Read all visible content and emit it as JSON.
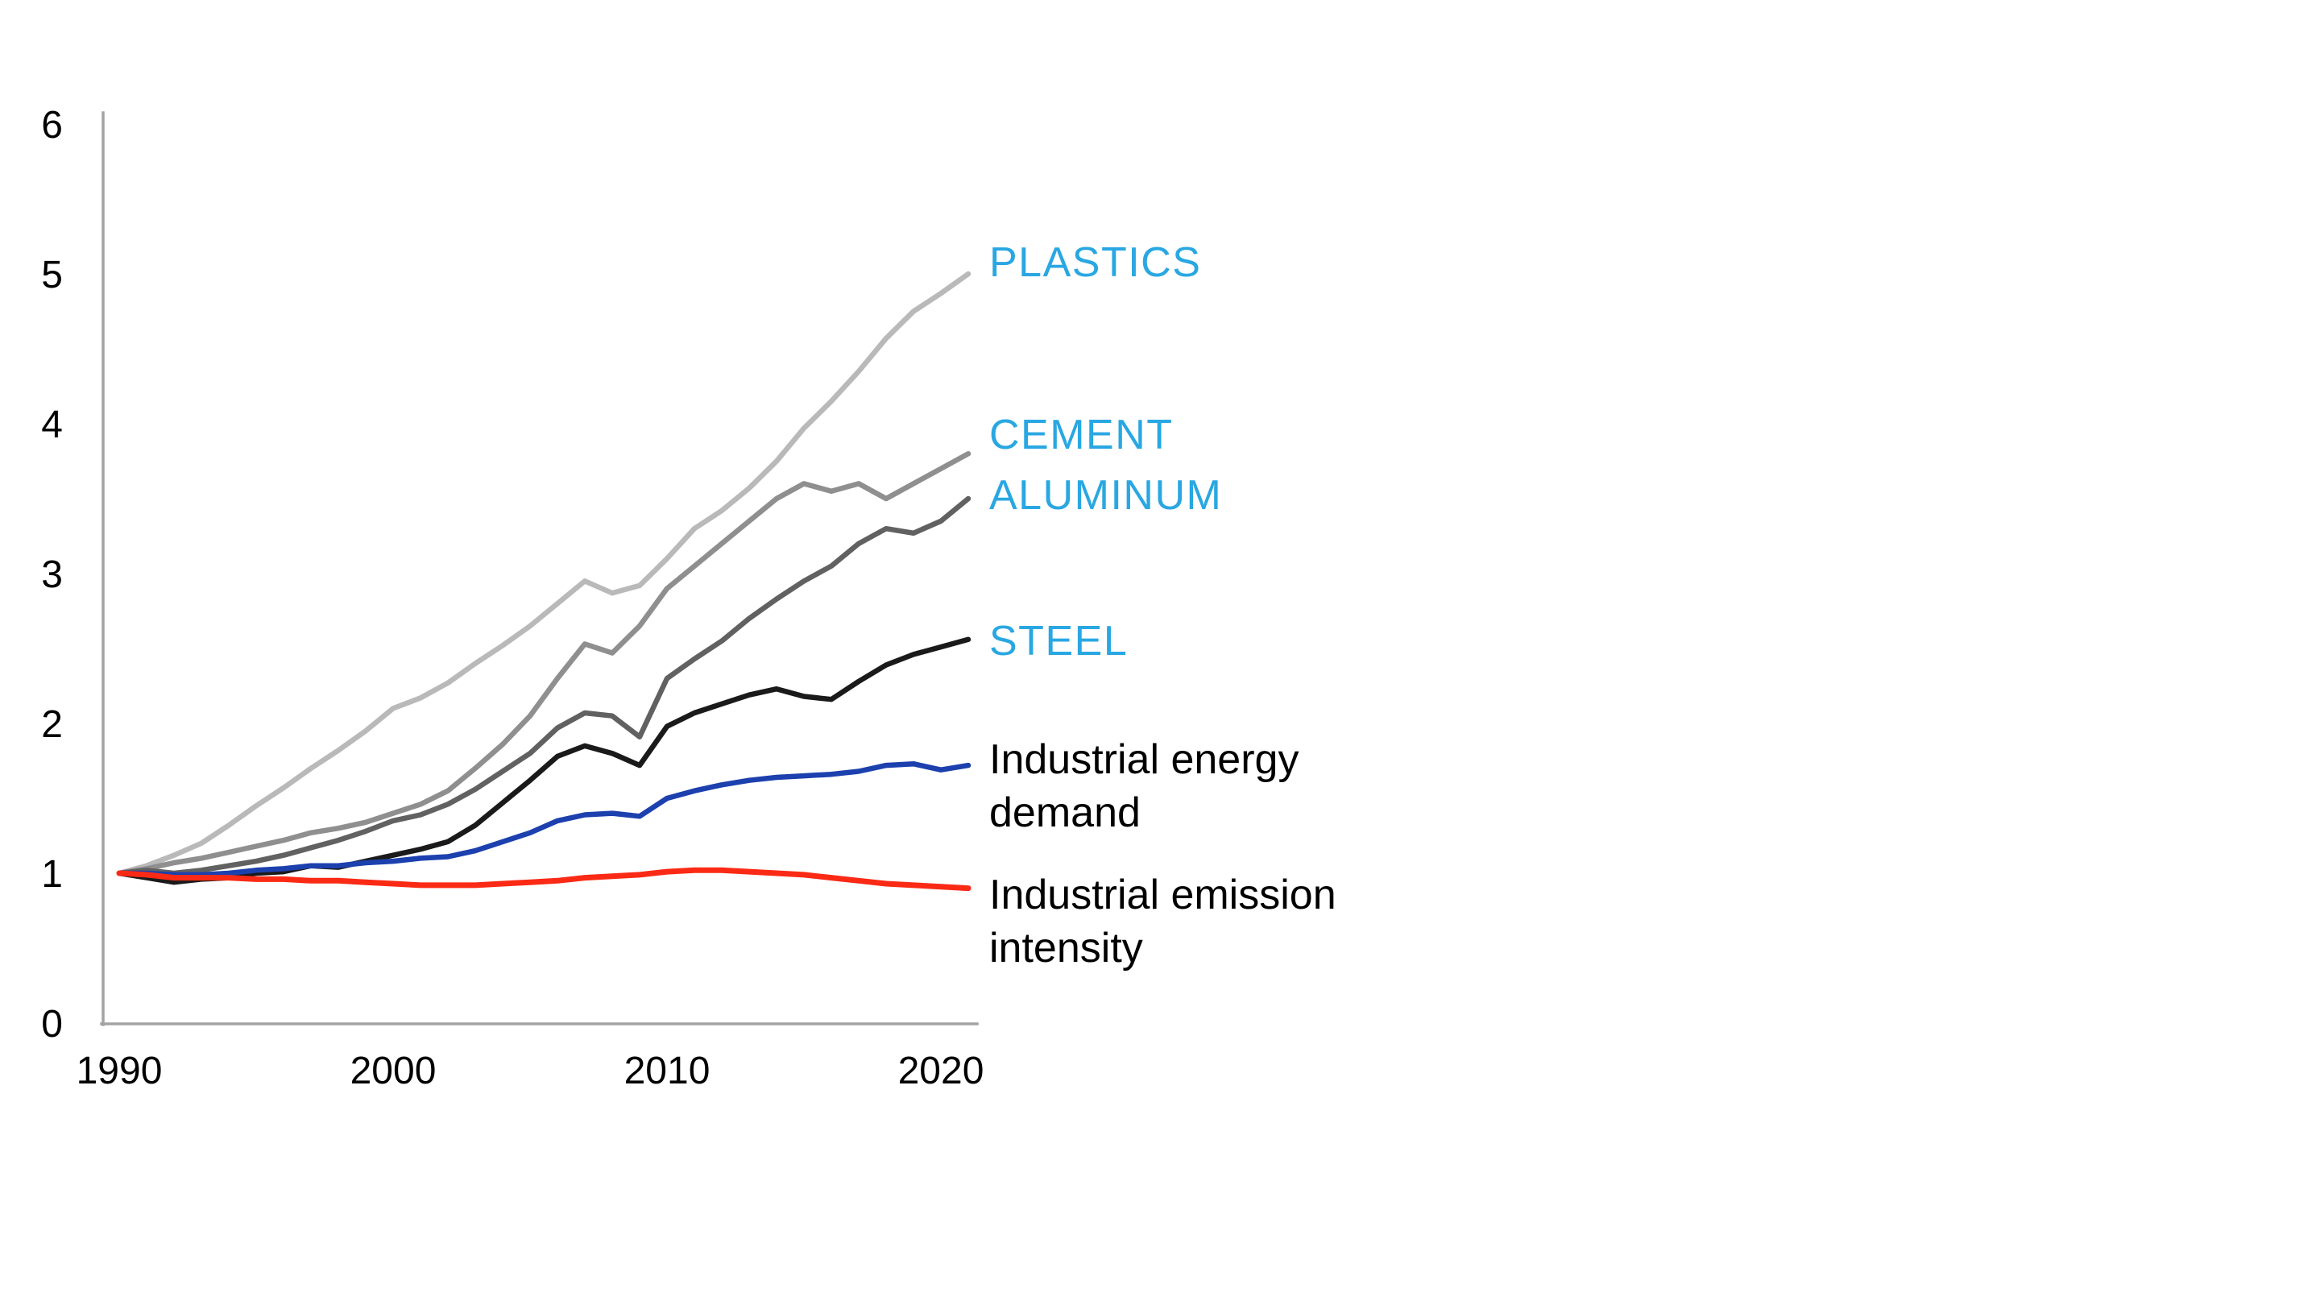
{
  "chart_data": {
    "type": "line",
    "title": "",
    "xlabel": "",
    "ylabel": "",
    "x_range": [
      1990,
      2021
    ],
    "ylim": [
      0,
      6
    ],
    "grid": false,
    "legend_position": "right-of-line-ends",
    "ytick_labels": [
      "0",
      "1",
      "2",
      "3",
      "4",
      "5",
      "6"
    ],
    "ytick_values": [
      0,
      1,
      2,
      3,
      4,
      5,
      6
    ],
    "xtick_labels": [
      "1990",
      "2000",
      "2010",
      "2020"
    ],
    "xtick_values": [
      1990,
      2000,
      2010,
      2020
    ],
    "axis_color": "#a3a3a3",
    "years": [
      1990,
      1991,
      1992,
      1993,
      1994,
      1995,
      1996,
      1997,
      1998,
      1999,
      2000,
      2001,
      2002,
      2003,
      2004,
      2005,
      2006,
      2007,
      2008,
      2009,
      2010,
      2011,
      2012,
      2013,
      2014,
      2015,
      2016,
      2017,
      2018,
      2019,
      2020,
      2021
    ],
    "series": [
      {
        "id": "plastics",
        "label": "PLASTICS",
        "label_color": "#29a7e2",
        "color": "#b9b9b9",
        "values": [
          1.0,
          1.05,
          1.12,
          1.2,
          1.32,
          1.45,
          1.57,
          1.7,
          1.82,
          1.95,
          2.1,
          2.17,
          2.27,
          2.4,
          2.52,
          2.65,
          2.8,
          2.95,
          2.87,
          2.92,
          3.1,
          3.3,
          3.42,
          3.57,
          3.75,
          3.97,
          4.15,
          4.35,
          4.57,
          4.75,
          4.87,
          5.0
        ]
      },
      {
        "id": "cement",
        "label": "CEMENT",
        "label_color": "#29a7e2",
        "color": "#8f8f8f",
        "values": [
          1.0,
          1.03,
          1.07,
          1.1,
          1.14,
          1.18,
          1.22,
          1.27,
          1.3,
          1.34,
          1.4,
          1.46,
          1.55,
          1.7,
          1.86,
          2.05,
          2.3,
          2.53,
          2.47,
          2.65,
          2.9,
          3.05,
          3.2,
          3.35,
          3.5,
          3.6,
          3.55,
          3.6,
          3.5,
          3.6,
          3.7,
          3.8
        ]
      },
      {
        "id": "aluminum",
        "label": "ALUMINUM",
        "label_color": "#29a7e2",
        "color": "#616161",
        "values": [
          1.0,
          1.02,
          1.0,
          1.02,
          1.05,
          1.08,
          1.12,
          1.17,
          1.22,
          1.28,
          1.35,
          1.39,
          1.46,
          1.56,
          1.68,
          1.8,
          1.97,
          2.07,
          2.05,
          1.91,
          2.3,
          2.43,
          2.55,
          2.7,
          2.83,
          2.95,
          3.05,
          3.2,
          3.3,
          3.27,
          3.35,
          3.5
        ]
      },
      {
        "id": "steel",
        "label": "STEEL",
        "label_color": "#29a7e2",
        "color": "#1a1a1a",
        "values": [
          1.0,
          0.97,
          0.94,
          0.96,
          0.97,
          1.0,
          1.01,
          1.05,
          1.04,
          1.08,
          1.12,
          1.16,
          1.21,
          1.32,
          1.47,
          1.62,
          1.78,
          1.85,
          1.8,
          1.72,
          1.98,
          2.07,
          2.13,
          2.19,
          2.23,
          2.18,
          2.16,
          2.28,
          2.39,
          2.46,
          2.51,
          2.56
        ]
      },
      {
        "id": "energy",
        "label": "Industrial energy demand",
        "label_lines": [
          "Industrial energy",
          "demand"
        ],
        "label_color": "#000000",
        "color": "#1c40ae",
        "values": [
          1.0,
          1.0,
          0.99,
          0.99,
          1.0,
          1.02,
          1.03,
          1.05,
          1.05,
          1.07,
          1.08,
          1.1,
          1.11,
          1.15,
          1.21,
          1.27,
          1.35,
          1.39,
          1.4,
          1.38,
          1.5,
          1.55,
          1.59,
          1.62,
          1.64,
          1.65,
          1.66,
          1.68,
          1.72,
          1.73,
          1.69,
          1.72
        ]
      },
      {
        "id": "emission",
        "label": "Industrial emission intensity",
        "label_lines": [
          "Industrial emission",
          "intensity"
        ],
        "label_color": "#000000",
        "color": "#fb2a15",
        "values": [
          1.0,
          0.99,
          0.97,
          0.97,
          0.97,
          0.96,
          0.96,
          0.95,
          0.95,
          0.94,
          0.93,
          0.92,
          0.92,
          0.92,
          0.93,
          0.94,
          0.95,
          0.97,
          0.98,
          0.99,
          1.01,
          1.02,
          1.02,
          1.01,
          1.0,
          0.99,
          0.97,
          0.95,
          0.93,
          0.92,
          0.91,
          0.9
        ]
      }
    ]
  }
}
